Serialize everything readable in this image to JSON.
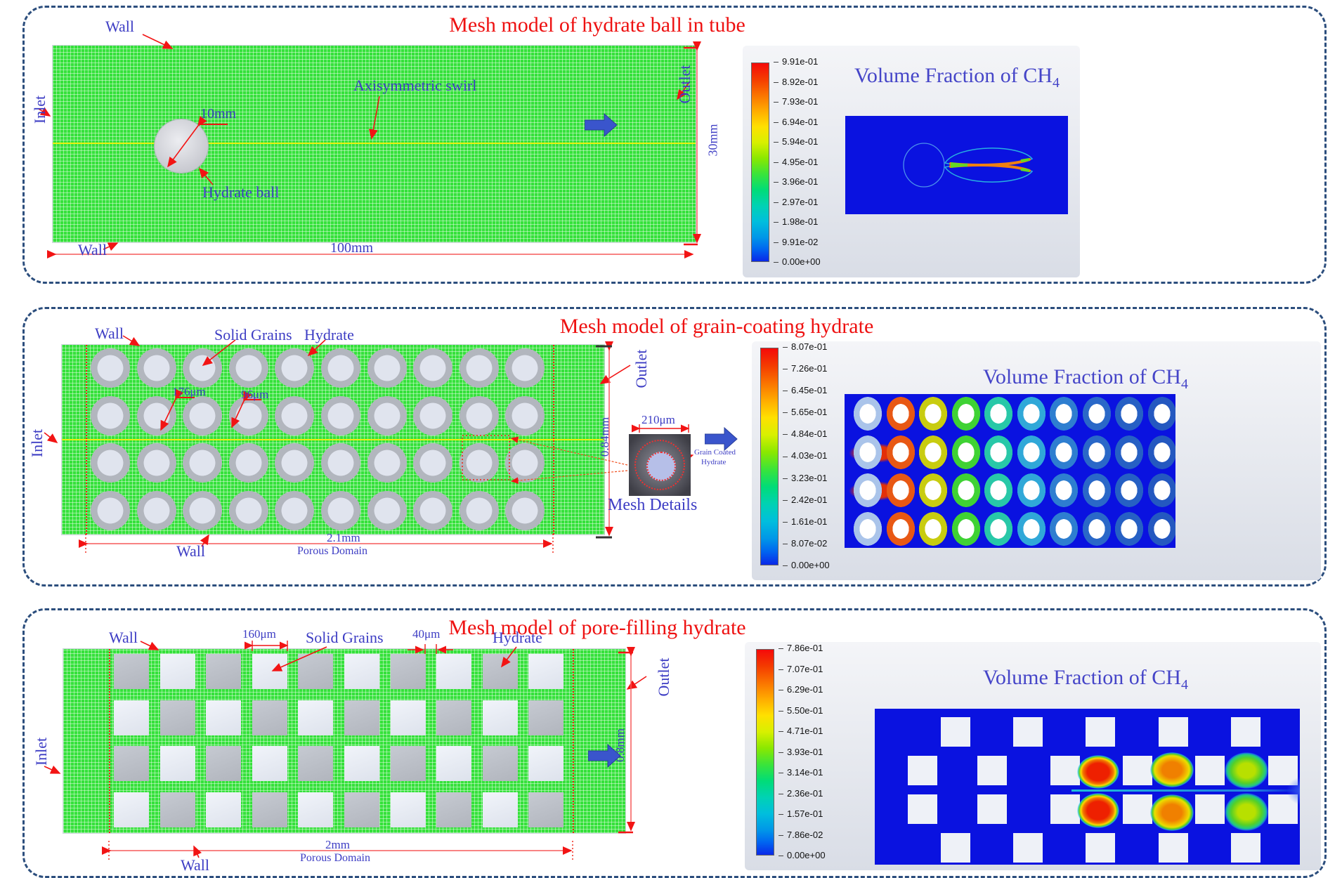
{
  "figure": {
    "panels": [
      {
        "title": "Mesh model of hydrate ball in tube",
        "labels": {
          "wall_top": "Wall",
          "inlet": "Inlet",
          "axisymmetric_swirl": "Axisymmetric swirl",
          "ball_diameter": "10mm",
          "hydrate_ball": "Hydrate ball",
          "wall_bottom": "Wall",
          "tube_length": "100mm",
          "outlet": "Outlet",
          "tube_diameter": "30mm"
        },
        "viz": {
          "title_main": "Volume Fraction of CH",
          "title_sub": "4",
          "colorbar_ticks": [
            "9.91e-01",
            "8.92e-01",
            "7.93e-01",
            "6.94e-01",
            "5.94e-01",
            "4.95e-01",
            "3.96e-01",
            "2.97e-01",
            "1.98e-01",
            "9.91e-02",
            "0.00e+00"
          ]
        }
      },
      {
        "title": "Mesh model of grain-coating hydrate",
        "labels": {
          "wall_top": "Wall",
          "solid_grains": "Solid Grains",
          "hydrate": "Hydrate",
          "grain_diameter": "176μm",
          "coating_thickness": "96μm",
          "inlet": "Inlet",
          "outlet": "Outlet",
          "domain_height": "0.84mm",
          "domain_length": "2.1mm",
          "porous_domain": "Porous Domain",
          "wall_bottom": "Wall",
          "inset_width": "210μm",
          "grain_coated_line1": "Grain Coated",
          "grain_coated_line2": "Hydrate",
          "mesh_details": "Mesh Details"
        },
        "viz": {
          "title_main": "Volume Fraction of CH",
          "title_sub": "4",
          "colorbar_ticks": [
            "8.07e-01",
            "7.26e-01",
            "6.45e-01",
            "5.65e-01",
            "4.84e-01",
            "4.03e-01",
            "3.23e-01",
            "2.42e-01",
            "1.61e-01",
            "8.07e-02",
            "0.00e+00"
          ]
        }
      },
      {
        "title": "Mesh model of pore-filling hydrate",
        "labels": {
          "wall_top": "Wall",
          "grain_size": "160μm",
          "solid_grains": "Solid Grains",
          "hydrate_size": "40μm",
          "hydrate": "Hydrate",
          "inlet": "Inlet",
          "outlet": "Outlet",
          "domain_height": "0.8mm",
          "domain_length": "2mm",
          "porous_domain": "Porous Domain",
          "wall_bottom": "Wall"
        },
        "viz": {
          "title_main": "Volume Fraction of CH",
          "title_sub": "4",
          "colorbar_ticks": [
            "7.86e-01",
            "7.07e-01",
            "6.29e-01",
            "5.50e-01",
            "4.71e-01",
            "3.93e-01",
            "3.14e-01",
            "2.36e-01",
            "1.57e-01",
            "7.86e-02",
            "0.00e+00"
          ]
        }
      }
    ],
    "colors": {
      "title_red": "#ee1111",
      "label_blue": "#3d3dc4",
      "mesh_green": "#35e13b",
      "contour_blue": "#0a12e0",
      "annotation_red": "#f21414",
      "flow_arrow_blue": "#3a55cc",
      "panel_border": "#2c4e7d",
      "halo_colors": [
        "#aac4ea",
        "#e85814",
        "#c8cc10",
        "#3fd234",
        "#28c8a8",
        "#30a8d8",
        "#2e7ed0",
        "#2a68c8",
        "#2660c4",
        "#2458c0"
      ]
    }
  }
}
